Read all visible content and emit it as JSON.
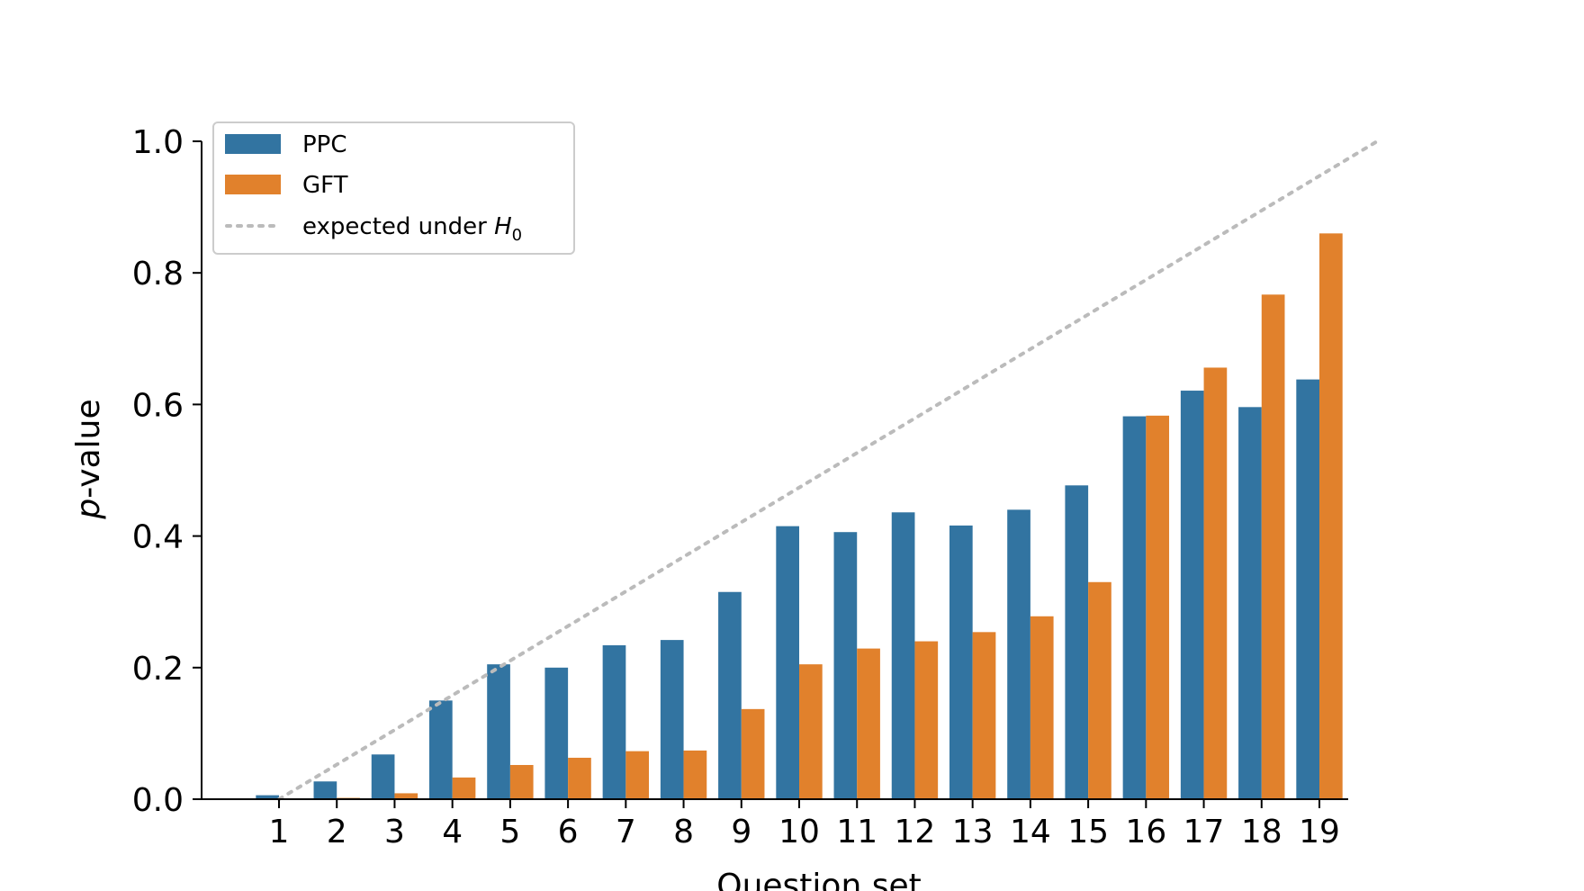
{
  "chart_data": {
    "type": "bar",
    "title": "",
    "xlabel": "Question set",
    "ylabel_italic": "p",
    "ylabel_rest": "-value",
    "categories": [
      "1",
      "2",
      "3",
      "4",
      "5",
      "6",
      "7",
      "8",
      "9",
      "10",
      "11",
      "12",
      "13",
      "14",
      "15",
      "16",
      "17",
      "18",
      "19"
    ],
    "series": [
      {
        "name": "PPC",
        "color": "#3274a1",
        "values": [
          0.006,
          0.027,
          0.068,
          0.15,
          0.205,
          0.2,
          0.234,
          0.242,
          0.315,
          0.415,
          0.406,
          0.436,
          0.416,
          0.44,
          0.477,
          0.582,
          0.621,
          0.596,
          0.638
        ]
      },
      {
        "name": "GFT",
        "color": "#e1812c",
        "values": [
          0.001,
          0.002,
          0.009,
          0.033,
          0.052,
          0.063,
          0.073,
          0.074,
          0.137,
          0.205,
          0.229,
          0.24,
          0.254,
          0.278,
          0.33,
          0.583,
          0.656,
          0.767,
          0.86
        ]
      }
    ],
    "reference_line": {
      "name_text": "expected under ",
      "name_symbol": "H",
      "name_subscript": "0",
      "color": "#bbbbbb",
      "from": [
        1,
        0.0
      ],
      "to": [
        20,
        1.0
      ]
    },
    "yticks": [
      "0.0",
      "0.2",
      "0.4",
      "0.6",
      "0.8",
      "1.0"
    ],
    "ylim": [
      0,
      1.0
    ],
    "legend_position": "top-left",
    "grid": false
  }
}
